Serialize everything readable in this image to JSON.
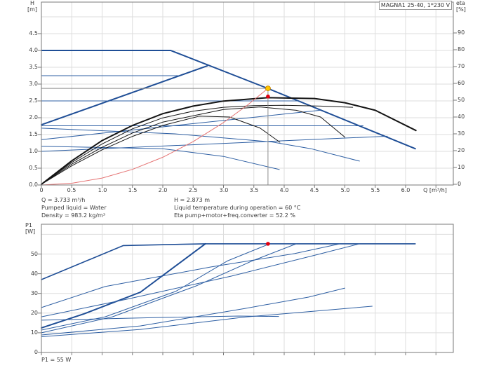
{
  "title_box": "MAGNA1 25-40, 1*230 V",
  "axes": {
    "h_label_1": "H",
    "h_label_2": "[m]",
    "eta_label_1": "eta",
    "eta_label_2": "[%]",
    "p1_label_1": "P1",
    "p1_label_2": "[W]",
    "q_unit": "Q [m³/h]",
    "h_ticks": [
      "0.0",
      "0.5",
      "1.0",
      "1.5",
      "2.0",
      "2.5",
      "3.0",
      "3.5",
      "4.0",
      "4.5"
    ],
    "eta_ticks": [
      "0",
      "10",
      "20",
      "30",
      "40",
      "50",
      "60",
      "70",
      "80",
      "90"
    ],
    "q_ticks": [
      "0",
      "0.5",
      "1.0",
      "1.5",
      "2.0",
      "2.5",
      "3.0",
      "3.5",
      "4.0",
      "4.5",
      "5.0",
      "5.5",
      "6.0"
    ],
    "p_ticks": [
      "0",
      "10",
      "20",
      "30",
      "40",
      "50"
    ]
  },
  "info": {
    "q": "Q = 3.733 m³/h",
    "liquid": "Pumped liquid = Water",
    "density": "Density = 983.2 kg/m³",
    "h": "H = 2.873 m",
    "temp": "Liquid temperature during operation = 60 °C",
    "eta": "Eta pump+motor+freq.converter = 52.2 %",
    "p1": "P1 = 55 W"
  },
  "colors": {
    "blue_thin": "#2e5fa3",
    "blue_thick": "#1f4e96",
    "black_curve": "#141414",
    "red_curve": "#e57373",
    "duty_gray": "#8c8c8c",
    "grid": "#dddddd",
    "frame": "#7a7a7a",
    "yellow_dot": "#ffc800",
    "yellow_dot_edge": "#cc8a00",
    "red_dot": "#e3000f"
  },
  "chart_data": [
    {
      "type": "line",
      "id": "hq",
      "title": "MAGNA1 25-40, 1*230 V",
      "xlabel": "Q [m³/h]",
      "ylabel_left": "H [m]",
      "ylabel_right": "eta [%]",
      "x_range": [
        0,
        6.78
      ],
      "h_range": [
        0,
        5.44
      ],
      "eta_range": [
        0,
        108
      ],
      "grid": true,
      "x_grid_step": 0.5,
      "h_grid_step": 0.5,
      "duty_point": {
        "q": 3.733,
        "h": 2.873,
        "eta": 52.2
      },
      "series": [
        {
          "name": "max-speed-curve",
          "axis": "h",
          "color": "#1f4e96",
          "width": 2,
          "points": [
            [
              0,
              4.0
            ],
            [
              2.13,
              4.0
            ],
            [
              3.71,
              2.885
            ],
            [
              6.16,
              1.08
            ]
          ]
        },
        {
          "name": "prop-pressure-max-line",
          "axis": "h",
          "color": "#1f4e96",
          "width": 2,
          "points": [
            [
              0,
              1.79
            ],
            [
              2.73,
              3.54
            ]
          ]
        },
        {
          "name": "const-pressure-3.25",
          "axis": "h",
          "color": "#2e5fa3",
          "width": 1,
          "points": [
            [
              0,
              3.25
            ],
            [
              2.28,
              3.25
            ]
          ]
        },
        {
          "name": "const-pressure-2.5",
          "axis": "h",
          "color": "#2e5fa3",
          "width": 1,
          "points": [
            [
              0,
              2.5
            ],
            [
              4.25,
              2.5
            ]
          ]
        },
        {
          "name": "const-pressure-1.76",
          "axis": "h",
          "color": "#2e5fa3",
          "width": 1,
          "points": [
            [
              0,
              1.76
            ],
            [
              5.3,
              1.76
            ]
          ]
        },
        {
          "name": "prop-pressure-1.35",
          "axis": "h",
          "color": "#2e5fa3",
          "width": 1,
          "points": [
            [
              0,
              1.35
            ],
            [
              4.59,
              2.22
            ]
          ]
        },
        {
          "name": "prop-pressure-1.0",
          "axis": "h",
          "color": "#2e5fa3",
          "width": 1,
          "points": [
            [
              0,
              1.0
            ],
            [
              5.7,
              1.45
            ]
          ]
        },
        {
          "name": "speed-curve-low-1",
          "axis": "h",
          "color": "#2e5fa3",
          "width": 1,
          "points": [
            [
              0,
              1.15
            ],
            [
              2.0,
              1.08
            ],
            [
              3.0,
              0.85
            ],
            [
              3.92,
              0.46
            ]
          ]
        },
        {
          "name": "speed-curve-low-2",
          "axis": "h",
          "color": "#2e5fa3",
          "width": 1,
          "points": [
            [
              0,
              1.69
            ],
            [
              2.2,
              1.52
            ],
            [
              3.8,
              1.28
            ],
            [
              4.44,
              1.08
            ],
            [
              5.24,
              0.71
            ]
          ]
        },
        {
          "name": "eta-curve-max",
          "axis": "eta",
          "color": "#141414",
          "width": 2,
          "points": [
            [
              0,
              0
            ],
            [
              0.5,
              14
            ],
            [
              1,
              26
            ],
            [
              1.5,
              35
            ],
            [
              2,
              42
            ],
            [
              2.5,
              46.5
            ],
            [
              3,
              49.5
            ],
            [
              3.73,
              51.5
            ],
            [
              4.5,
              51
            ],
            [
              5,
              48.5
            ],
            [
              5.5,
              44
            ],
            [
              6.17,
              32
            ]
          ]
        },
        {
          "name": "eta-curve-2",
          "axis": "eta",
          "color": "#141414",
          "width": 1,
          "points": [
            [
              0,
              0
            ],
            [
              0.5,
              13
            ],
            [
              1,
              24
            ],
            [
              1.5,
              33
            ],
            [
              2,
              39.5
            ],
            [
              2.5,
              43.5
            ],
            [
              3,
              45.8
            ],
            [
              3.5,
              46.8
            ],
            [
              4,
              47
            ],
            [
              4.6,
              46.5
            ],
            [
              5.13,
              45.8
            ]
          ]
        },
        {
          "name": "eta-curve-3",
          "axis": "eta",
          "color": "#141414",
          "width": 1,
          "points": [
            [
              0,
              0
            ],
            [
              0.5,
              12
            ],
            [
              1,
              22
            ],
            [
              1.5,
              30.5
            ],
            [
              2,
              37
            ],
            [
              3,
              44.5
            ],
            [
              3.6,
              46
            ],
            [
              4.2,
              44
            ],
            [
              4.6,
              40
            ],
            [
              5.0,
              28
            ]
          ]
        },
        {
          "name": "eta-curve-4",
          "axis": "eta",
          "color": "#141414",
          "width": 1,
          "points": [
            [
              0,
              0
            ],
            [
              0.5,
              11
            ],
            [
              1,
              20.5
            ],
            [
              1.5,
              28.5
            ],
            [
              2,
              35
            ],
            [
              2.6,
              40.5
            ],
            [
              3.1,
              40
            ],
            [
              3.6,
              33.5
            ],
            [
              3.93,
              25
            ]
          ]
        },
        {
          "name": "system-curve",
          "axis": "h",
          "color": "#e57373",
          "width": 1,
          "points": [
            [
              0,
              0
            ],
            [
              0.5,
              0.052
            ],
            [
              1,
              0.206
            ],
            [
              1.5,
              0.464
            ],
            [
              2,
              0.825
            ],
            [
              2.5,
              1.289
            ],
            [
              3,
              1.856
            ],
            [
              3.4,
              2.384
            ],
            [
              3.733,
              2.873
            ]
          ]
        },
        {
          "name": "duty-h-line",
          "axis": "h",
          "color": "#8c8c8c",
          "width": 1,
          "points": [
            [
              0,
              2.873
            ],
            [
              3.733,
              2.873
            ]
          ]
        },
        {
          "name": "duty-q-line",
          "axis": "h",
          "color": "#8c8c8c",
          "width": 1,
          "points": [
            [
              3.733,
              2.873
            ],
            [
              3.733,
              0
            ]
          ]
        }
      ],
      "markers": [
        {
          "name": "duty-point-dot",
          "axis": "h",
          "q": 3.733,
          "value": 2.873,
          "fill": "#ffc800",
          "stroke": "#cc8a00",
          "r": 3.5
        },
        {
          "name": "eta-point-dot",
          "axis": "eta",
          "q": 3.733,
          "value": 52.2,
          "fill": "#e3000f",
          "stroke": "none",
          "r": 2.8
        }
      ]
    },
    {
      "type": "line",
      "id": "p1q",
      "xlabel": "Q [m³/h]",
      "ylabel_left": "P1 [W]",
      "x_range": [
        0,
        6.78
      ],
      "p_range": [
        0,
        65
      ],
      "grid": true,
      "x_grid_step": 0.5,
      "p_grid_step": 10,
      "duty_point": {
        "q": 3.733,
        "p1": 55
      },
      "series": [
        {
          "name": "p1-max-power",
          "axis": "p",
          "color": "#1f4e96",
          "width": 1.6,
          "points": [
            [
              0,
              37
            ],
            [
              1.35,
              54.3
            ],
            [
              2.7,
              55.2
            ],
            [
              6.16,
              55.2
            ]
          ]
        },
        {
          "name": "p1-autoadapt-thick",
          "axis": "p",
          "color": "#1f4e96",
          "width": 2,
          "points": [
            [
              0,
              12.5
            ],
            [
              0.7,
              19.6
            ],
            [
              1.63,
              30.6
            ],
            [
              2.7,
              55.2
            ]
          ]
        },
        {
          "name": "p1-join-3.76",
          "axis": "p",
          "color": "#2e5fa3",
          "width": 1,
          "points": [
            [
              0,
              11.4
            ],
            [
              1.05,
              18.1
            ],
            [
              2.21,
              31
            ],
            [
              3.07,
              46.6
            ],
            [
              3.76,
              55.2
            ]
          ]
        },
        {
          "name": "p1-join-4.2",
          "axis": "p",
          "color": "#2e5fa3",
          "width": 1,
          "points": [
            [
              0,
              10
            ],
            [
              1.17,
              18.1
            ],
            [
              2.55,
              33.8
            ],
            [
              3.48,
              46.6
            ],
            [
              4.2,
              55.2
            ]
          ]
        },
        {
          "name": "p1-join-4.92",
          "axis": "p",
          "color": "#2e5fa3",
          "width": 1,
          "points": [
            [
              0,
              22.8
            ],
            [
              1.05,
              33.5
            ],
            [
              2.79,
              43.4
            ],
            [
              4.17,
              50.2
            ],
            [
              4.92,
              55.2
            ]
          ]
        },
        {
          "name": "p1-join-5.24",
          "axis": "p",
          "color": "#2e5fa3",
          "width": 1,
          "points": [
            [
              0,
              18.1
            ],
            [
              1.4,
              27
            ],
            [
              3.13,
              38.8
            ],
            [
              4.52,
              49.5
            ],
            [
              5.24,
              55.2
            ]
          ]
        },
        {
          "name": "p1-min-speed",
          "axis": "p",
          "color": "#2e5fa3",
          "width": 1,
          "points": [
            [
              0,
              16.4
            ],
            [
              2.0,
              17.8
            ],
            [
              3.25,
              18.5
            ],
            [
              3.91,
              18.3
            ]
          ]
        },
        {
          "name": "p1-low-1",
          "axis": "p",
          "color": "#2e5fa3",
          "width": 1,
          "points": [
            [
              0,
              8.9
            ],
            [
              1.63,
              13.5
            ],
            [
              3.36,
              22.4
            ],
            [
              4.4,
              28.1
            ],
            [
              5.0,
              32.7
            ]
          ]
        },
        {
          "name": "p1-low-2",
          "axis": "p",
          "color": "#2e5fa3",
          "width": 1,
          "points": [
            [
              0,
              8
            ],
            [
              1.63,
              11.7
            ],
            [
              3.36,
              18
            ],
            [
              5.45,
              23.5
            ]
          ]
        }
      ],
      "markers": [
        {
          "name": "p1-point-dot",
          "axis": "p",
          "q": 3.733,
          "value": 55.2,
          "fill": "#e3000f",
          "stroke": "none",
          "r": 2.8
        }
      ]
    }
  ]
}
